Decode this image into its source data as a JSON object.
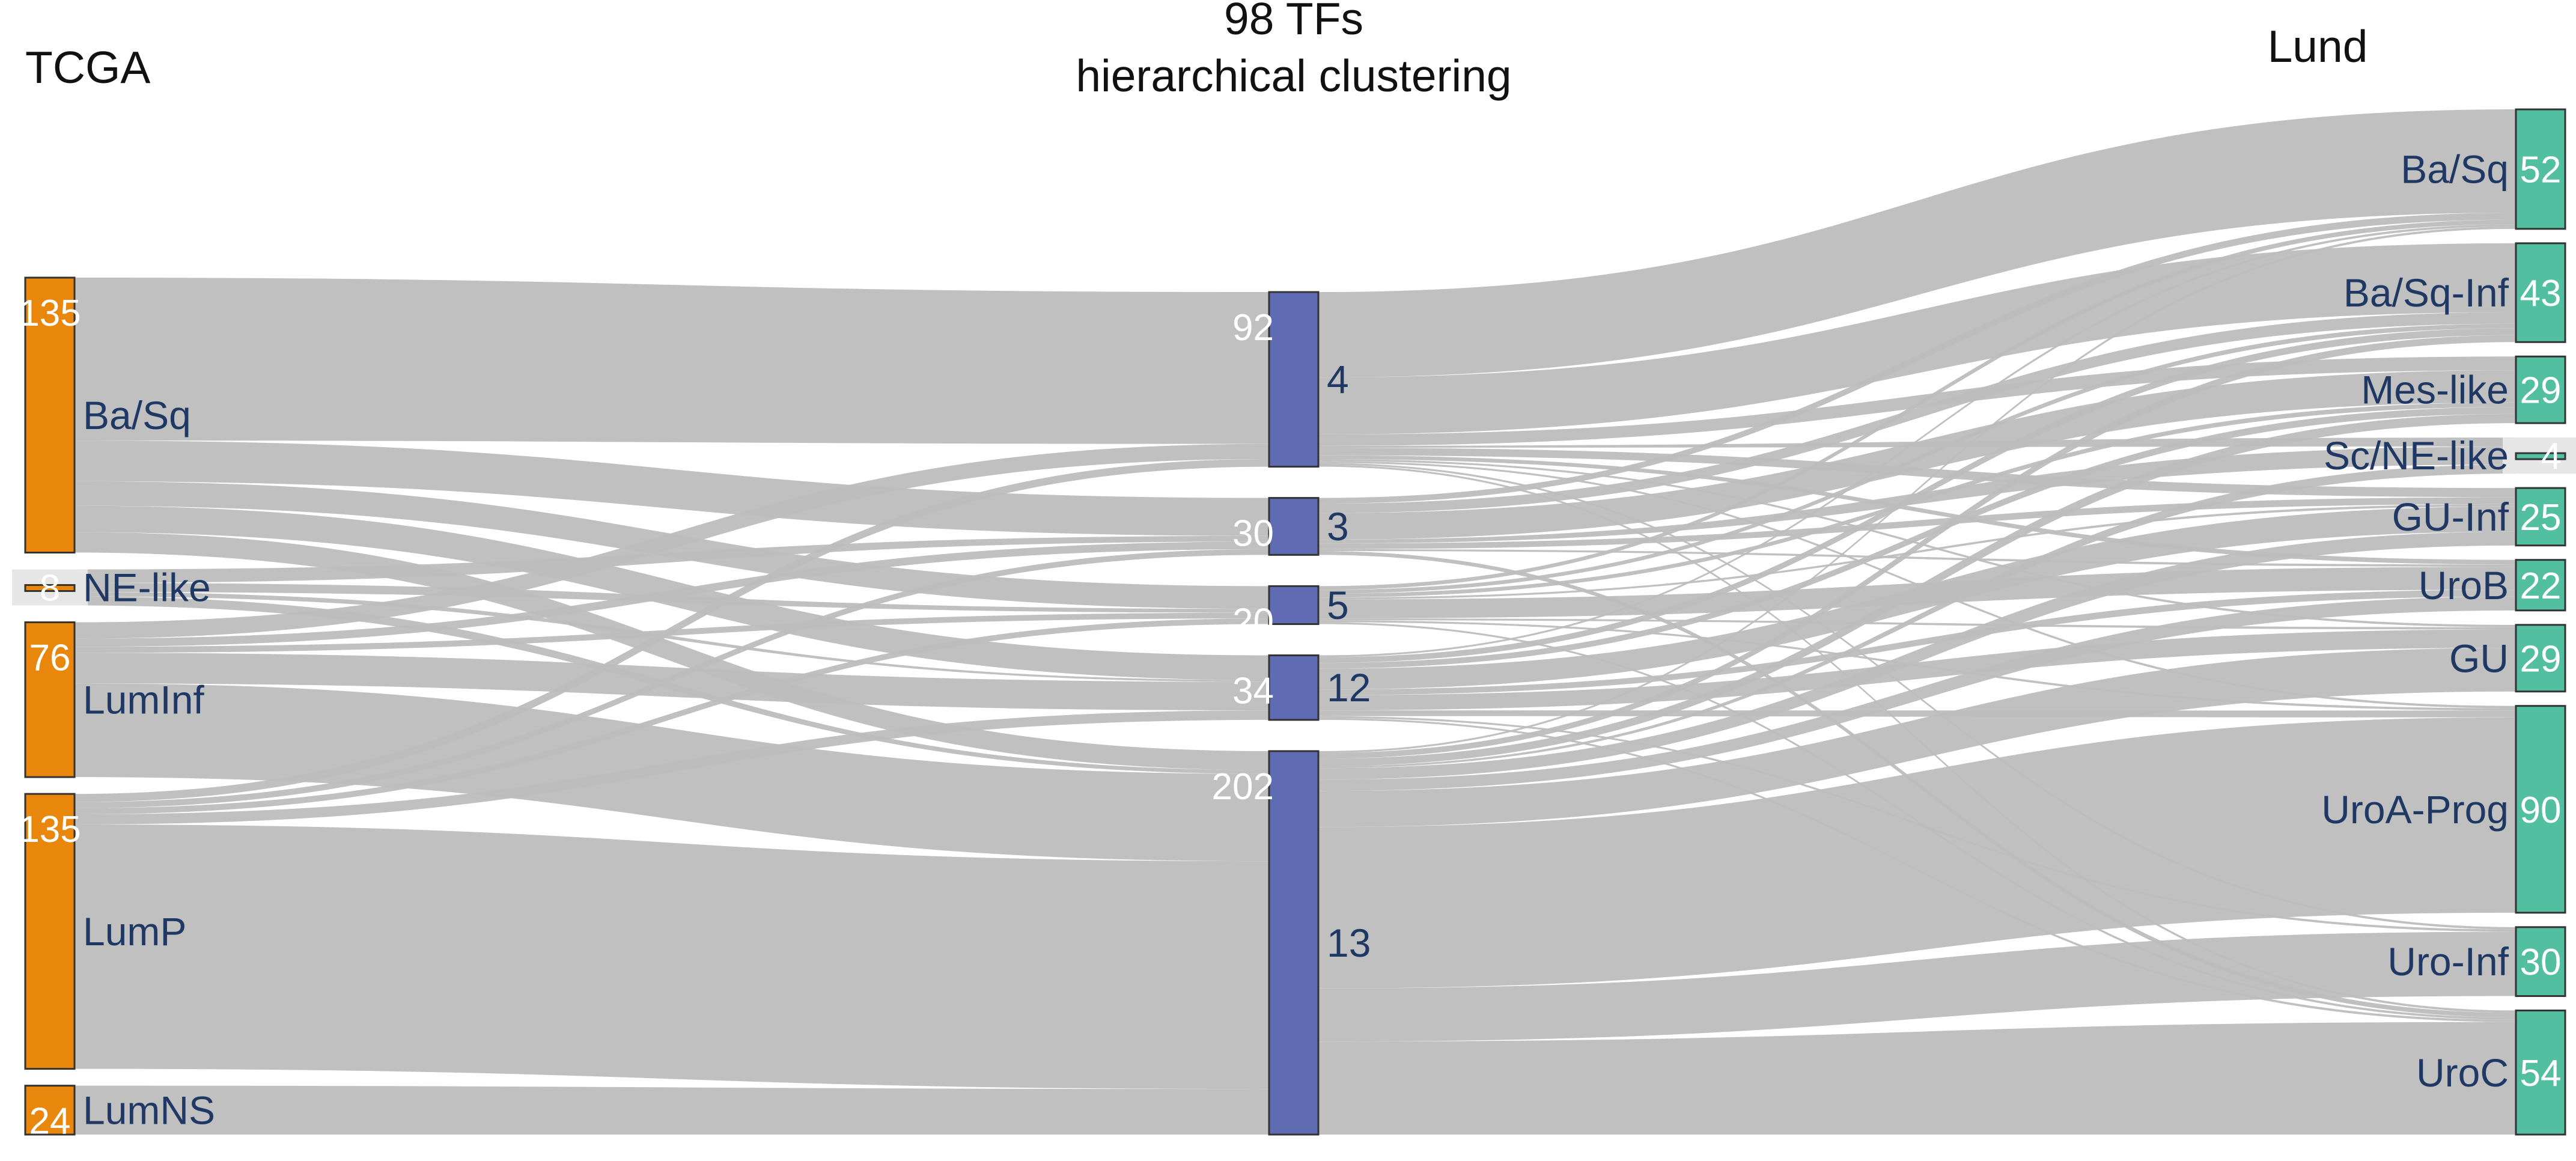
{
  "titles": {
    "left": "TCGA",
    "middle_line1": "98 TFs",
    "middle_line2": "hierarchical clustering",
    "right": "Lund"
  },
  "colors": {
    "tcga": "#e8870b",
    "cluster": "#5f6bb3",
    "lund": "#52bfa0",
    "minor": "#e6e6e6",
    "flow": "#bdbdbd",
    "label_text": "#1f3864",
    "count_text": "#ffffff"
  },
  "columns": {
    "left": [
      {
        "id": "L_BaSq",
        "label": "Ba/Sq",
        "count": "135"
      },
      {
        "id": "L_NE",
        "label": "NE-like",
        "count": "8",
        "minor": true
      },
      {
        "id": "L_LumInf",
        "label": "LumInf",
        "count": "76"
      },
      {
        "id": "L_LumP",
        "label": "LumP",
        "count": "135"
      },
      {
        "id": "L_LumNS",
        "label": "LumNS",
        "count": "24"
      }
    ],
    "middle": [
      {
        "id": "M4",
        "label": "4",
        "count": "92"
      },
      {
        "id": "M3",
        "label": "3",
        "count": "30"
      },
      {
        "id": "M5",
        "label": "5",
        "count": "20"
      },
      {
        "id": "M12",
        "label": "12",
        "count": "34"
      },
      {
        "id": "M13",
        "label": "13",
        "count": "202"
      }
    ],
    "right": [
      {
        "id": "R_BaSq",
        "label": "Ba/Sq",
        "count": "52"
      },
      {
        "id": "R_BaSqInf",
        "label": "Ba/Sq-Inf",
        "count": "43"
      },
      {
        "id": "R_Mes",
        "label": "Mes-like",
        "count": "29"
      },
      {
        "id": "R_ScNE",
        "label": "Sc/NE-like",
        "count": "4",
        "minor": true
      },
      {
        "id": "R_GUInf",
        "label": "GU-Inf",
        "count": "25"
      },
      {
        "id": "R_UroB",
        "label": "UroB",
        "count": "22"
      },
      {
        "id": "R_GU",
        "label": "GU",
        "count": "29"
      },
      {
        "id": "R_UroAProg",
        "label": "UroA-Prog",
        "count": "90"
      },
      {
        "id": "R_UroInf",
        "label": "Uro-Inf",
        "count": "30"
      },
      {
        "id": "R_UroC",
        "label": "UroC",
        "count": "54"
      }
    ]
  },
  "flows_left": [
    {
      "from": "L_BaSq",
      "to": "M4",
      "value": 80
    },
    {
      "from": "L_BaSq",
      "to": "M3",
      "value": 20
    },
    {
      "from": "L_BaSq",
      "to": "M5",
      "value": 12
    },
    {
      "from": "L_BaSq",
      "to": "M12",
      "value": 13
    },
    {
      "from": "L_BaSq",
      "to": "M13",
      "value": 10
    },
    {
      "from": "L_NE",
      "to": "M3",
      "value": 3
    },
    {
      "from": "L_NE",
      "to": "M5",
      "value": 2
    },
    {
      "from": "L_NE",
      "to": "M12",
      "value": 1
    },
    {
      "from": "L_NE",
      "to": "M13",
      "value": 2
    },
    {
      "from": "L_LumInf",
      "to": "M4",
      "value": 8
    },
    {
      "from": "L_LumInf",
      "to": "M3",
      "value": 4
    },
    {
      "from": "L_LumInf",
      "to": "M5",
      "value": 3
    },
    {
      "from": "L_LumInf",
      "to": "M12",
      "value": 15
    },
    {
      "from": "L_LumInf",
      "to": "M13",
      "value": 46
    },
    {
      "from": "L_LumP",
      "to": "M4",
      "value": 4
    },
    {
      "from": "L_LumP",
      "to": "M3",
      "value": 3
    },
    {
      "from": "L_LumP",
      "to": "M5",
      "value": 3
    },
    {
      "from": "L_LumP",
      "to": "M12",
      "value": 5
    },
    {
      "from": "L_LumP",
      "to": "M13",
      "value": 120
    },
    {
      "from": "L_LumNS",
      "to": "M13",
      "value": 24
    }
  ],
  "flows_right": [
    {
      "from": "M4",
      "to": "R_BaSq",
      "value": 45
    },
    {
      "from": "M4",
      "to": "R_BaSqInf",
      "value": 30
    },
    {
      "from": "M4",
      "to": "R_Mes",
      "value": 6
    },
    {
      "from": "M4",
      "to": "R_ScNE",
      "value": 1
    },
    {
      "from": "M4",
      "to": "R_GUInf",
      "value": 4
    },
    {
      "from": "M4",
      "to": "R_UroB",
      "value": 2
    },
    {
      "from": "M4",
      "to": "R_GU",
      "value": 1
    },
    {
      "from": "M4",
      "to": "R_UroAProg",
      "value": 1
    },
    {
      "from": "M4",
      "to": "R_UroInf",
      "value": 1
    },
    {
      "from": "M4",
      "to": "R_UroC",
      "value": 1
    },
    {
      "from": "M3",
      "to": "R_BaSq",
      "value": 3
    },
    {
      "from": "M3",
      "to": "R_BaSqInf",
      "value": 5
    },
    {
      "from": "M3",
      "to": "R_Mes",
      "value": 14
    },
    {
      "from": "M3",
      "to": "R_ScNE",
      "value": 2
    },
    {
      "from": "M3",
      "to": "R_GUInf",
      "value": 3
    },
    {
      "from": "M3",
      "to": "R_UroB",
      "value": 1
    },
    {
      "from": "M3",
      "to": "R_UroC",
      "value": 2
    },
    {
      "from": "M5",
      "to": "R_BaSq",
      "value": 2
    },
    {
      "from": "M5",
      "to": "R_BaSqInf",
      "value": 2
    },
    {
      "from": "M5",
      "to": "R_Mes",
      "value": 2
    },
    {
      "from": "M5",
      "to": "R_GUInf",
      "value": 1
    },
    {
      "from": "M5",
      "to": "R_UroB",
      "value": 10
    },
    {
      "from": "M5",
      "to": "R_GU",
      "value": 1
    },
    {
      "from": "M5",
      "to": "R_UroAProg",
      "value": 1
    },
    {
      "from": "M5",
      "to": "R_UroC",
      "value": 1
    },
    {
      "from": "M12",
      "to": "R_BaSq",
      "value": 1
    },
    {
      "from": "M12",
      "to": "R_BaSqInf",
      "value": 3
    },
    {
      "from": "M12",
      "to": "R_Mes",
      "value": 3
    },
    {
      "from": "M12",
      "to": "R_GUInf",
      "value": 11
    },
    {
      "from": "M12",
      "to": "R_UroB",
      "value": 3
    },
    {
      "from": "M12",
      "to": "R_GU",
      "value": 8
    },
    {
      "from": "M12",
      "to": "R_UroAProg",
      "value": 3
    },
    {
      "from": "M12",
      "to": "R_UroInf",
      "value": 1
    },
    {
      "from": "M12",
      "to": "R_UroC",
      "value": 1
    },
    {
      "from": "M13",
      "to": "R_BaSq",
      "value": 1
    },
    {
      "from": "M13",
      "to": "R_BaSqInf",
      "value": 3
    },
    {
      "from": "M13",
      "to": "R_Mes",
      "value": 4
    },
    {
      "from": "M13",
      "to": "R_ScNE",
      "value": 1
    },
    {
      "from": "M13",
      "to": "R_GUInf",
      "value": 6
    },
    {
      "from": "M13",
      "to": "R_UroB",
      "value": 6
    },
    {
      "from": "M13",
      "to": "R_GU",
      "value": 19
    },
    {
      "from": "M13",
      "to": "R_UroAProg",
      "value": 85
    },
    {
      "from": "M13",
      "to": "R_UroInf",
      "value": 28
    },
    {
      "from": "M13",
      "to": "R_UroC",
      "value": 49
    }
  ]
}
